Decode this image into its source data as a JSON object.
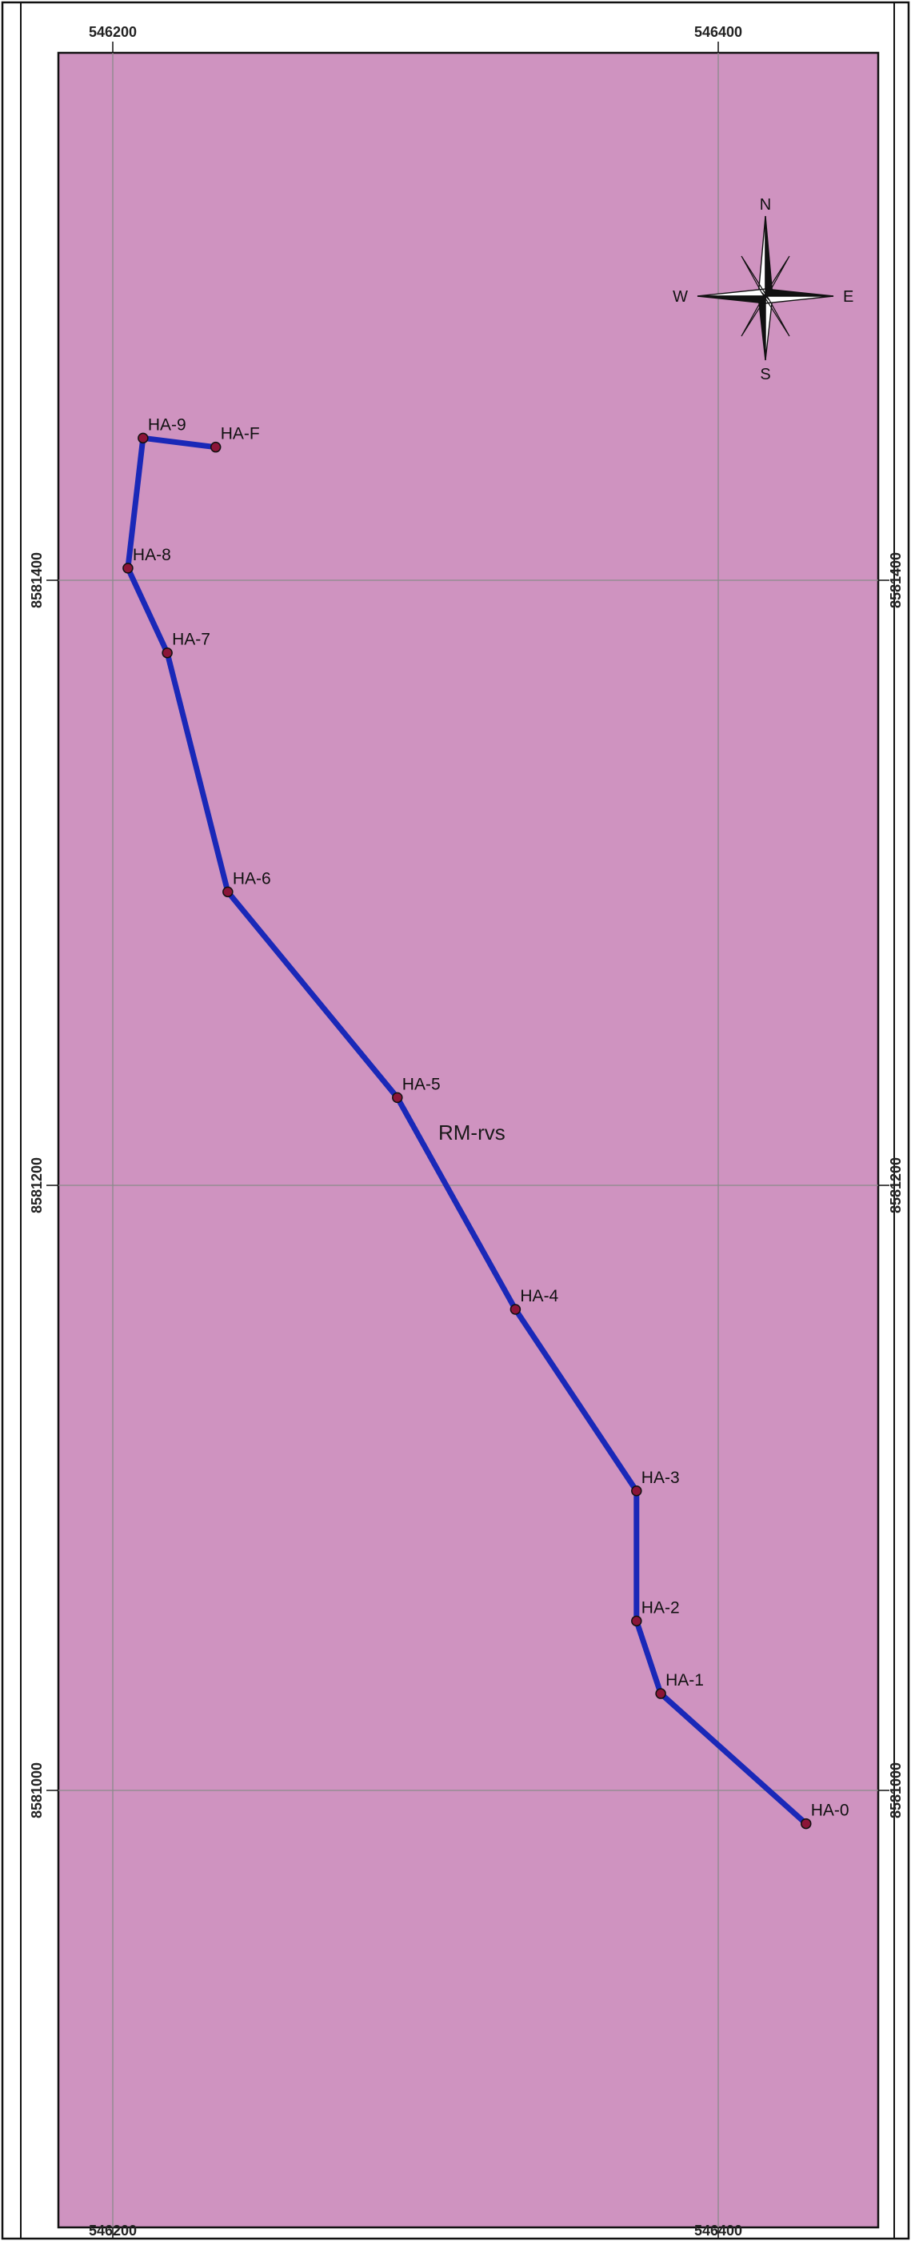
{
  "colors": {
    "map_fill": "#cf93c0",
    "route_line": "#1a28b8",
    "vertex_fill": "#8b1538",
    "grid_line": "#8a8a8a",
    "frame": "#111111"
  },
  "area_label": "RM-rvs",
  "compass": {
    "north": "N",
    "south": "S",
    "east": "E",
    "west": "W"
  },
  "grid": {
    "easting_labels": [
      {
        "value": 546200,
        "text": "546200"
      },
      {
        "value": 546400,
        "text": "546400"
      }
    ],
    "northing_labels": [
      {
        "value": 8581400,
        "text": "8581400"
      },
      {
        "value": 8581200,
        "text": "8581200"
      },
      {
        "value": 8581000,
        "text": "8581000"
      }
    ]
  },
  "vertices": [
    {
      "name": "HA-0",
      "e": 546429,
      "n": 8580989
    },
    {
      "name": "HA-1",
      "e": 546381,
      "n": 8581032
    },
    {
      "name": "HA-2",
      "e": 546373,
      "n": 8581056
    },
    {
      "name": "HA-3",
      "e": 546373,
      "n": 8581099
    },
    {
      "name": "HA-4",
      "e": 546333,
      "n": 8581159
    },
    {
      "name": "HA-5",
      "e": 546294,
      "n": 8581229
    },
    {
      "name": "HA-6",
      "e": 546238,
      "n": 8581297
    },
    {
      "name": "HA-7",
      "e": 546218,
      "n": 8581376
    },
    {
      "name": "HA-8",
      "e": 546205,
      "n": 8581404
    },
    {
      "name": "HA-9",
      "e": 546210,
      "n": 8581447
    },
    {
      "name": "HA-F",
      "e": 546234,
      "n": 8581444
    }
  ]
}
